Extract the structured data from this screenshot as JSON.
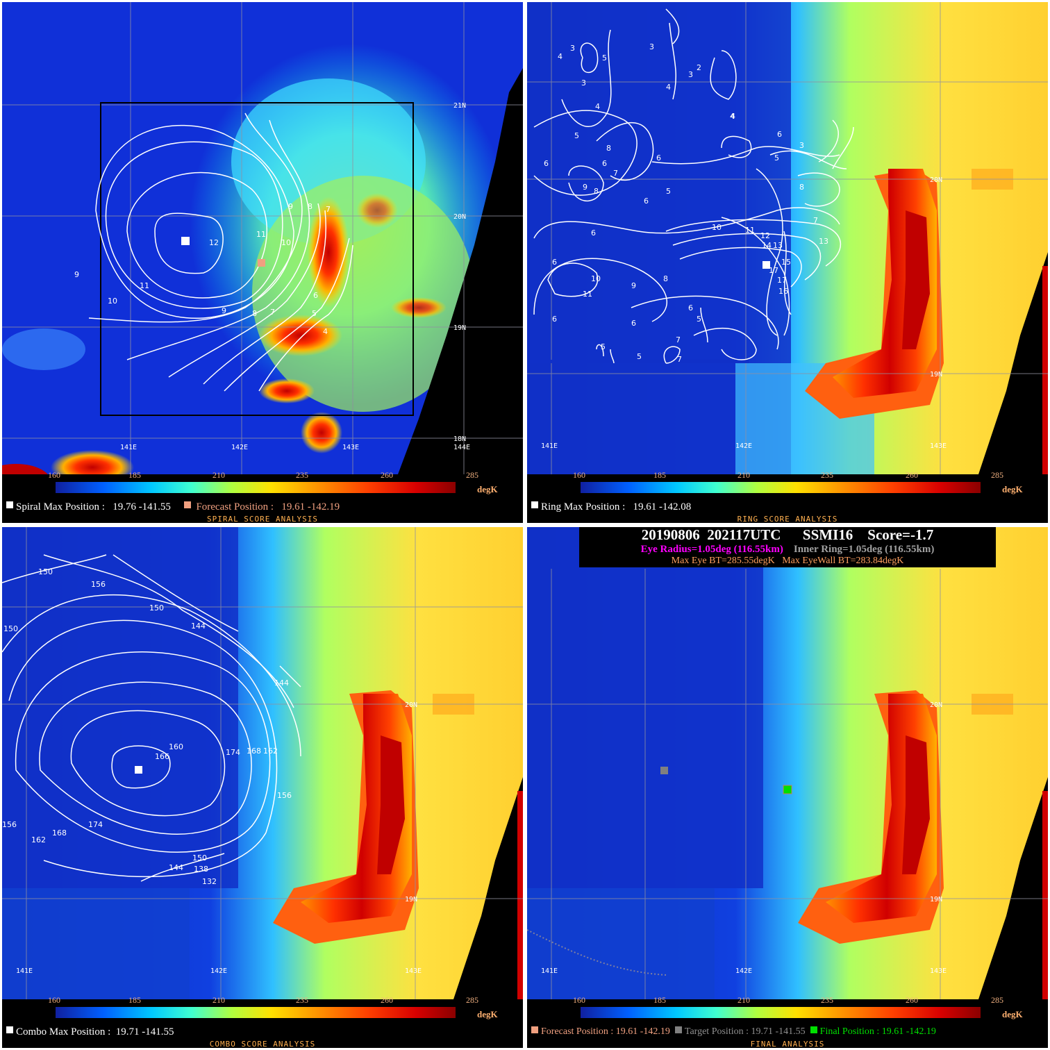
{
  "colorbar": {
    "ticks": [
      "160",
      "185",
      "210",
      "235",
      "260",
      "285"
    ],
    "unit": "degK"
  },
  "grid": {
    "spiral": {
      "lat": [
        "21N",
        "20N",
        "19N",
        "18N"
      ],
      "lon": [
        "141E",
        "142E",
        "143E",
        "144E"
      ]
    },
    "zoom": {
      "lat": [
        "20N",
        "19N"
      ],
      "lon": [
        "141E",
        "142E",
        "143E"
      ]
    }
  },
  "spiral": {
    "max_label": "Spiral Max Position :",
    "max_value": "19.76 -141.55",
    "forecast_label": "Forecast Position :",
    "forecast_value": "19.61 -142.19",
    "caption": "SPIRAL SCORE ANALYSIS",
    "contour_labels": [
      "12",
      "11",
      "10",
      "9",
      "8",
      "7",
      "6",
      "5",
      "4",
      "11",
      "10",
      "9",
      "8",
      "7",
      "9"
    ]
  },
  "ring": {
    "max_label": "Ring Max Position :",
    "max_value": "19.61 -142.08",
    "caption": "RING SCORE ANALYSIS",
    "contour_labels": [
      "4",
      "3",
      "5",
      "3",
      "2",
      "3",
      "3",
      "4",
      "4",
      "4",
      "5",
      "6",
      "6",
      "9",
      "8",
      "7",
      "6",
      "5",
      "6",
      "8",
      "5",
      "4",
      "3",
      "6",
      "8",
      "10",
      "11",
      "12",
      "13",
      "14",
      "13",
      "7",
      "15",
      "17",
      "16",
      "17",
      "10",
      "11",
      "9",
      "8",
      "6",
      "6",
      "5",
      "7",
      "5",
      "5",
      "6",
      "7",
      "6",
      "6"
    ]
  },
  "combo": {
    "max_label": "Combo Max Position :",
    "max_value": "19.71 -141.55",
    "caption": "COMBO SCORE ANALYSIS",
    "contour_labels": [
      "150",
      "156",
      "150",
      "150",
      "144",
      "144",
      "160",
      "166",
      "174",
      "168",
      "162",
      "156",
      "156",
      "162",
      "168",
      "174",
      "150",
      "144",
      "138",
      "132"
    ]
  },
  "final": {
    "header_line1": "20190806  202117UTC      SSMI16    Score=-1.7",
    "eye_radius": "Eye Radius=1.05deg (116.55km)",
    "inner_ring": "Inner Ring=1.05deg (116.55km)",
    "max_eye_bt": "Max Eye BT=285.55degK",
    "max_eyewall_bt": "Max EyeWall BT=283.84degK",
    "forecast_label": "Forecast Position : 19.61 -142.19",
    "target_label": "Target Position : 19.71 -141.55",
    "final_label": "Final Position : 19.61 -142.19",
    "caption": "FINAL ANALYSIS"
  },
  "colors": {
    "forecast": "#f0a080",
    "target": "#808080",
    "final": "#00e000",
    "eye_radius": "#ff00ff",
    "inner_ring": "#a0a0a0",
    "bt_text": "#ffa060"
  }
}
